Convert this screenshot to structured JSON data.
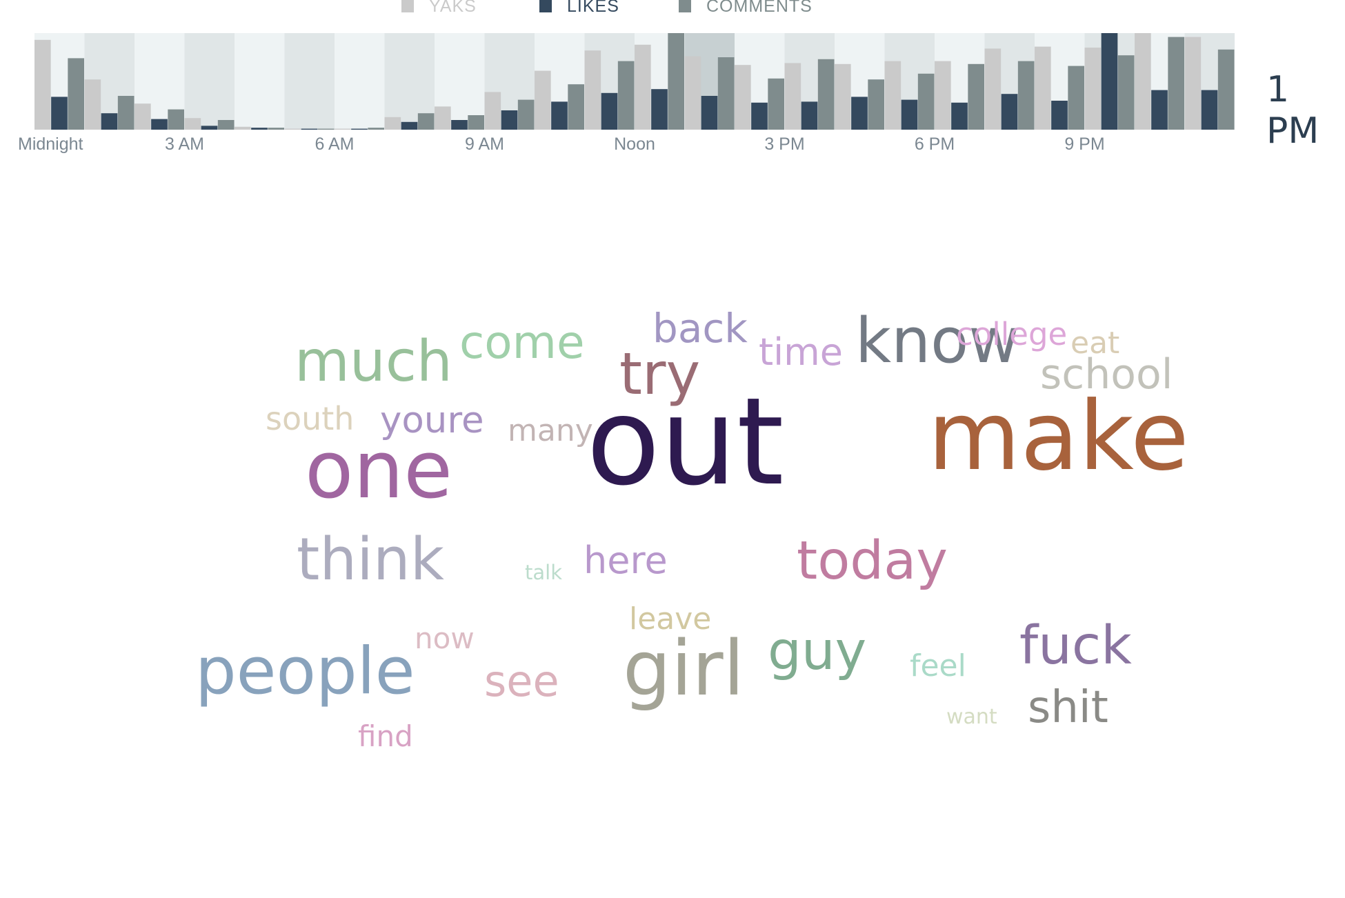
{
  "legend": {
    "yaks": {
      "label": "YAKS",
      "color": "#cacaca"
    },
    "likes": {
      "label": "LIKES",
      "color": "#34495e"
    },
    "comments": {
      "label": "COMMENTS",
      "color": "#7f8c8d"
    }
  },
  "time_readout": "1 PM",
  "chart_data": {
    "type": "bar",
    "categories": [
      "12 AM",
      "1 AM",
      "2 AM",
      "3 AM",
      "4 AM",
      "5 AM",
      "6 AM",
      "7 AM",
      "8 AM",
      "9 AM",
      "10 AM",
      "11 AM",
      "12 PM",
      "1 PM",
      "2 PM",
      "3 PM",
      "4 PM",
      "5 PM",
      "6 PM",
      "7 PM",
      "8 PM",
      "9 PM",
      "10 PM",
      "11 PM"
    ],
    "x_tick_labels": [
      {
        "index": 0,
        "label": "Midnight"
      },
      {
        "index": 3,
        "label": "3 AM"
      },
      {
        "index": 6,
        "label": "6 AM"
      },
      {
        "index": 9,
        "label": "9 AM"
      },
      {
        "index": 12,
        "label": "Noon"
      },
      {
        "index": 15,
        "label": "3 PM"
      },
      {
        "index": 18,
        "label": "6 PM"
      },
      {
        "index": 21,
        "label": "9 PM"
      }
    ],
    "series": [
      {
        "name": "YAKS",
        "color": "#cacaca",
        "values": [
          93,
          52,
          27,
          12,
          3,
          1,
          1,
          13,
          24,
          39,
          61,
          82,
          88,
          76,
          67,
          69,
          68,
          71,
          71,
          84,
          86,
          85,
          100,
          96
        ]
      },
      {
        "name": "LIKES",
        "color": "#34495e",
        "values": [
          34,
          17,
          11,
          4,
          2,
          1,
          1,
          8,
          10,
          20,
          29,
          38,
          42,
          35,
          28,
          29,
          34,
          31,
          28,
          37,
          30,
          100,
          41,
          41
        ]
      },
      {
        "name": "COMMENTS",
        "color": "#7f8c8d",
        "values": [
          74,
          35,
          21,
          10,
          2,
          1,
          2,
          17,
          15,
          31,
          47,
          71,
          100,
          75,
          53,
          73,
          52,
          58,
          68,
          71,
          66,
          77,
          96,
          83
        ]
      }
    ],
    "ylim": [
      0,
      100
    ],
    "highlighted_category": "1 PM",
    "grid": false,
    "legend_position": "top"
  },
  "word_cloud": [
    {
      "text": "one",
      "color": "#a066a0"
    },
    {
      "text": "out",
      "color": "#2e1a50"
    },
    {
      "text": "make",
      "color": "#a8623c"
    },
    {
      "text": "much",
      "color": "#98c09a"
    },
    {
      "text": "come",
      "color": "#a0d0aa"
    },
    {
      "text": "back",
      "color": "#a196c2"
    },
    {
      "text": "time",
      "color": "#c8a4d6"
    },
    {
      "text": "know",
      "color": "#737a84"
    },
    {
      "text": "college",
      "color": "#dda6d8"
    },
    {
      "text": "eat",
      "color": "#d9cdb4"
    },
    {
      "text": "school",
      "color": "#c2c2ba"
    },
    {
      "text": "try",
      "color": "#9a6c74"
    },
    {
      "text": "south",
      "color": "#dcd2bc"
    },
    {
      "text": "youre",
      "color": "#a893c2"
    },
    {
      "text": "many",
      "color": "#c2b4b4"
    },
    {
      "text": "think",
      "color": "#acacbe"
    },
    {
      "text": "talk",
      "color": "#bcdccc"
    },
    {
      "text": "here",
      "color": "#b898cc"
    },
    {
      "text": "today",
      "color": "#c07ca0"
    },
    {
      "text": "leave",
      "color": "#d2c8a0"
    },
    {
      "text": "now",
      "color": "#dcbcc4"
    },
    {
      "text": "people",
      "color": "#88a2bc"
    },
    {
      "text": "see",
      "color": "#dbb2bc"
    },
    {
      "text": "girl",
      "color": "#a4a496"
    },
    {
      "text": "guy",
      "color": "#80ac90"
    },
    {
      "text": "feel",
      "color": "#aadac8"
    },
    {
      "text": "fuck",
      "color": "#8a74a0"
    },
    {
      "text": "want",
      "color": "#d4dcc2"
    },
    {
      "text": "shit",
      "color": "#8a8a86"
    },
    {
      "text": "find",
      "color": "#d8a2c4"
    }
  ]
}
